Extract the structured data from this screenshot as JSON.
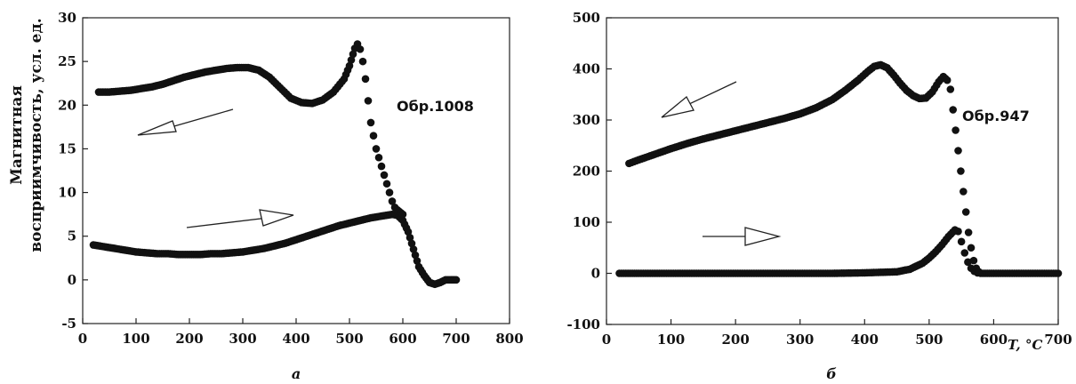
{
  "y_label_line1": "Магнитная",
  "y_label_line2": "восприимчивость, усл. ед.",
  "x_label_right": "T, °C",
  "chart_data": [
    {
      "type": "scatter",
      "panel": "а",
      "annotation": "Обр.1008",
      "xlim": [
        0,
        800
      ],
      "ylim": [
        -5,
        30
      ],
      "xticks": [
        "0",
        "100",
        "200",
        "300",
        "400",
        "500",
        "600",
        "700",
        "800"
      ],
      "yticks": [
        "-5",
        "0",
        "5",
        "10",
        "15",
        "20",
        "25",
        "30"
      ],
      "grid": false,
      "series": [
        {
          "direction": "heating",
          "arrow": "right",
          "x": [
            20,
            40,
            60,
            80,
            100,
            120,
            140,
            160,
            180,
            200,
            220,
            240,
            260,
            280,
            300,
            320,
            340,
            360,
            380,
            400,
            420,
            440,
            460,
            480,
            500,
            520,
            540,
            560,
            580,
            590,
            600,
            610,
            620,
            630,
            640,
            650,
            660,
            670,
            680,
            690,
            700
          ],
          "y": [
            4.0,
            3.8,
            3.6,
            3.4,
            3.2,
            3.1,
            3.0,
            3.0,
            2.9,
            2.9,
            2.9,
            3.0,
            3.0,
            3.1,
            3.2,
            3.4,
            3.6,
            3.9,
            4.2,
            4.6,
            5.0,
            5.4,
            5.8,
            6.2,
            6.5,
            6.8,
            7.1,
            7.3,
            7.5,
            7.4,
            6.8,
            5.5,
            3.5,
            1.5,
            0.5,
            -0.3,
            -0.5,
            -0.3,
            0.0,
            0.0,
            0.0
          ]
        },
        {
          "direction": "cooling",
          "arrow": "left",
          "x": [
            30,
            50,
            70,
            90,
            110,
            130,
            150,
            170,
            190,
            210,
            230,
            250,
            270,
            290,
            310,
            330,
            350,
            370,
            390,
            410,
            430,
            450,
            470,
            490,
            500,
            510,
            515,
            520,
            525,
            530,
            535,
            540,
            545,
            550,
            555,
            560,
            565,
            570,
            575,
            580,
            585,
            590,
            600
          ],
          "y": [
            21.5,
            21.5,
            21.6,
            21.7,
            21.9,
            22.1,
            22.4,
            22.8,
            23.2,
            23.5,
            23.8,
            24.0,
            24.2,
            24.3,
            24.3,
            24.0,
            23.2,
            22.0,
            20.8,
            20.3,
            20.2,
            20.6,
            21.5,
            23.0,
            24.5,
            26.5,
            27.0,
            26.4,
            25.0,
            23.0,
            20.5,
            18.0,
            16.5,
            15.0,
            14.0,
            13.0,
            12.0,
            11.0,
            10.0,
            9.0,
            8.3,
            8.0,
            7.5
          ]
        }
      ]
    },
    {
      "type": "scatter",
      "panel": "б",
      "annotation": "Обр.947",
      "xlabel": "T, °C",
      "xlim": [
        0,
        700
      ],
      "ylim": [
        -100,
        500
      ],
      "xticks": [
        "0",
        "100",
        "200",
        "300",
        "400",
        "500",
        "600",
        "700"
      ],
      "yticks": [
        "-100",
        "0",
        "100",
        "200",
        "300",
        "400",
        "500"
      ],
      "grid": false,
      "series": [
        {
          "direction": "heating",
          "arrow": "right",
          "x": [
            20,
            50,
            100,
            150,
            200,
            250,
            300,
            350,
            400,
            450,
            470,
            490,
            500,
            510,
            520,
            530,
            540,
            545,
            550,
            555,
            560,
            565,
            570,
            575,
            580,
            600,
            650,
            700
          ],
          "y": [
            0,
            0,
            0,
            0,
            0,
            0,
            0,
            0,
            1,
            3,
            8,
            20,
            30,
            42,
            56,
            72,
            85,
            82,
            62,
            40,
            22,
            10,
            4,
            1,
            0,
            0,
            0,
            0
          ]
        },
        {
          "direction": "cooling",
          "arrow": "left",
          "x": [
            35,
            50,
            75,
            100,
            125,
            150,
            175,
            200,
            225,
            250,
            275,
            300,
            325,
            350,
            370,
            390,
            405,
            415,
            425,
            435,
            445,
            455,
            465,
            475,
            485,
            495,
            505,
            515,
            522,
            528,
            533,
            537,
            541,
            545,
            549,
            553,
            557,
            561,
            565,
            569,
            573,
            577
          ],
          "y": [
            215,
            222,
            233,
            244,
            254,
            263,
            271,
            279,
            287,
            295,
            303,
            312,
            324,
            340,
            358,
            378,
            395,
            405,
            408,
            402,
            388,
            372,
            358,
            348,
            342,
            343,
            355,
            375,
            385,
            378,
            360,
            320,
            280,
            240,
            200,
            160,
            120,
            80,
            50,
            25,
            10,
            3
          ]
        }
      ]
    }
  ],
  "colors": {
    "marker": "#111111",
    "axis": "#222222"
  }
}
